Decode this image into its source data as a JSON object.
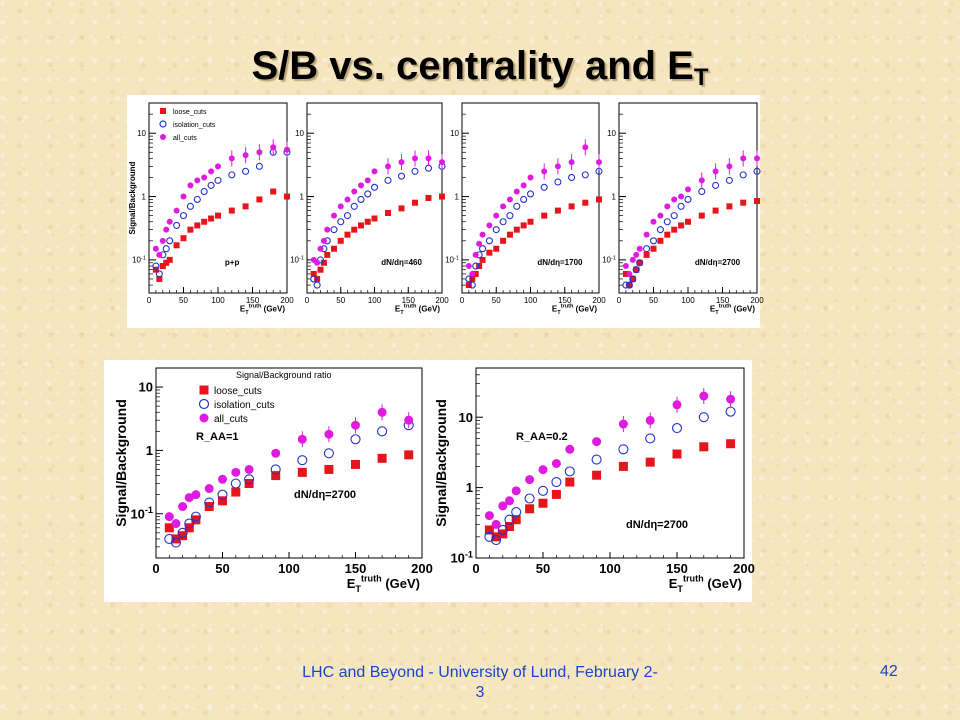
{
  "slide": {
    "title_main": "S/B vs. centrality and E",
    "title_sub": "T",
    "footer": "LHC and Beyond - University of Lund, February 2-3",
    "page_number": "42"
  },
  "colors": {
    "loose_cuts": "#e8141b",
    "isolation_cuts": "#2233cc",
    "all_cuts": "#e01be0",
    "background": "#f6e6bf",
    "footer_text": "#1a44c8"
  },
  "chart_data": [
    {
      "type": "scatter",
      "figure": "top",
      "panel": 1,
      "ylabel": "Signal/Background",
      "xlabel": "E_T^truth (GeV)",
      "xlim": [
        0,
        200
      ],
      "ylim": [
        0.03,
        30
      ],
      "yscale": "log",
      "yticks": [
        0.1,
        1,
        10
      ],
      "xticks": [
        0,
        50,
        100,
        150,
        200
      ],
      "annotation": "p+p",
      "legend": [
        "loose_cuts",
        "isolation_cuts",
        "all_cuts"
      ],
      "legend_position": "top-left",
      "series": [
        {
          "name": "loose_cuts",
          "marker": "filled-square",
          "x": [
            10,
            15,
            20,
            25,
            30,
            40,
            50,
            60,
            70,
            80,
            90,
            100,
            120,
            140,
            160,
            180,
            200
          ],
          "y": [
            0.07,
            0.05,
            0.08,
            0.09,
            0.1,
            0.17,
            0.22,
            0.3,
            0.35,
            0.4,
            0.45,
            0.5,
            0.6,
            0.7,
            0.9,
            1.2,
            1.0
          ]
        },
        {
          "name": "isolation_cuts",
          "marker": "open-circle",
          "x": [
            10,
            15,
            20,
            25,
            30,
            40,
            50,
            60,
            70,
            80,
            90,
            100,
            120,
            140,
            160,
            180,
            200
          ],
          "y": [
            0.08,
            0.06,
            0.12,
            0.15,
            0.2,
            0.35,
            0.5,
            0.7,
            0.9,
            1.2,
            1.5,
            1.8,
            2.2,
            2.5,
            3.0,
            5.0,
            5.0
          ]
        },
        {
          "name": "all_cuts",
          "marker": "filled-circle",
          "x": [
            10,
            15,
            20,
            25,
            30,
            40,
            50,
            60,
            70,
            80,
            90,
            100,
            120,
            140,
            160,
            180,
            200
          ],
          "y": [
            0.15,
            0.12,
            0.2,
            0.3,
            0.4,
            0.6,
            1.0,
            1.5,
            1.8,
            2.0,
            2.5,
            3.0,
            4.0,
            4.5,
            5.0,
            6.0,
            5.5
          ]
        }
      ]
    },
    {
      "type": "scatter",
      "figure": "top",
      "panel": 2,
      "xlabel": "E_T^truth (GeV)",
      "xlim": [
        0,
        200
      ],
      "ylim": [
        0.03,
        30
      ],
      "yscale": "log",
      "yticks": [
        0.1,
        1,
        10
      ],
      "xticks": [
        0,
        50,
        100,
        150,
        200
      ],
      "annotation": "dN/dη=460",
      "series": [
        {
          "name": "loose_cuts",
          "x": [
            10,
            15,
            20,
            25,
            30,
            40,
            50,
            60,
            70,
            80,
            90,
            100,
            120,
            140,
            160,
            180,
            200
          ],
          "y": [
            0.06,
            0.05,
            0.07,
            0.09,
            0.12,
            0.15,
            0.2,
            0.25,
            0.3,
            0.35,
            0.4,
            0.45,
            0.55,
            0.65,
            0.8,
            0.95,
            1.0
          ]
        },
        {
          "name": "isolation_cuts",
          "x": [
            10,
            15,
            20,
            25,
            30,
            40,
            50,
            60,
            70,
            80,
            90,
            100,
            120,
            140,
            160,
            180,
            200
          ],
          "y": [
            0.05,
            0.04,
            0.1,
            0.15,
            0.2,
            0.3,
            0.4,
            0.5,
            0.7,
            0.9,
            1.1,
            1.4,
            1.8,
            2.1,
            2.5,
            2.8,
            3.0
          ]
        },
        {
          "name": "all_cuts",
          "x": [
            10,
            15,
            20,
            25,
            30,
            40,
            50,
            60,
            70,
            80,
            90,
            100,
            120,
            140,
            160,
            180,
            200
          ],
          "y": [
            0.1,
            0.09,
            0.15,
            0.2,
            0.3,
            0.5,
            0.7,
            0.9,
            1.2,
            1.5,
            1.8,
            2.5,
            3.0,
            3.5,
            4.0,
            4.0,
            3.5
          ]
        }
      ]
    },
    {
      "type": "scatter",
      "figure": "top",
      "panel": 3,
      "xlabel": "E_T^truth (GeV)",
      "xlim": [
        0,
        200
      ],
      "ylim": [
        0.03,
        30
      ],
      "yscale": "log",
      "yticks": [
        0.1,
        1,
        10
      ],
      "xticks": [
        0,
        50,
        100,
        150,
        200
      ],
      "annotation": "dN/dη=1700",
      "series": [
        {
          "name": "loose_cuts",
          "x": [
            10,
            15,
            20,
            25,
            30,
            40,
            50,
            60,
            70,
            80,
            90,
            100,
            120,
            140,
            160,
            180,
            200
          ],
          "y": [
            0.04,
            0.05,
            0.06,
            0.08,
            0.1,
            0.13,
            0.15,
            0.2,
            0.25,
            0.3,
            0.35,
            0.4,
            0.5,
            0.6,
            0.7,
            0.8,
            0.9
          ]
        },
        {
          "name": "isolation_cuts",
          "x": [
            10,
            15,
            20,
            25,
            30,
            40,
            50,
            60,
            70,
            80,
            90,
            100,
            120,
            140,
            160,
            180,
            200
          ],
          "y": [
            0.05,
            0.04,
            0.08,
            0.12,
            0.15,
            0.2,
            0.3,
            0.4,
            0.5,
            0.7,
            0.9,
            1.1,
            1.4,
            1.7,
            2.0,
            2.2,
            2.5
          ]
        },
        {
          "name": "all_cuts",
          "x": [
            10,
            15,
            20,
            25,
            30,
            40,
            50,
            60,
            70,
            80,
            90,
            100,
            120,
            140,
            160,
            180,
            200
          ],
          "y": [
            0.08,
            0.06,
            0.12,
            0.18,
            0.25,
            0.35,
            0.5,
            0.7,
            0.9,
            1.2,
            1.5,
            2.0,
            2.5,
            3.0,
            3.5,
            6.0,
            3.5
          ]
        }
      ]
    },
    {
      "type": "scatter",
      "figure": "top",
      "panel": 4,
      "xlabel": "E_T^truth (GeV)",
      "xlim": [
        0,
        200
      ],
      "ylim": [
        0.03,
        30
      ],
      "yscale": "log",
      "yticks": [
        0.1,
        1,
        10
      ],
      "xticks": [
        0,
        50,
        100,
        150,
        200
      ],
      "annotation": "dN/dη=2700",
      "series": [
        {
          "name": "loose_cuts",
          "x": [
            10,
            15,
            20,
            25,
            30,
            40,
            50,
            60,
            70,
            80,
            90,
            100,
            120,
            140,
            160,
            180,
            200
          ],
          "y": [
            0.06,
            0.04,
            0.05,
            0.07,
            0.09,
            0.12,
            0.15,
            0.2,
            0.25,
            0.3,
            0.35,
            0.4,
            0.5,
            0.6,
            0.7,
            0.8,
            0.85
          ]
        },
        {
          "name": "isolation_cuts",
          "x": [
            10,
            15,
            20,
            25,
            30,
            40,
            50,
            60,
            70,
            80,
            90,
            100,
            120,
            140,
            160,
            180,
            200
          ],
          "y": [
            0.04,
            0.04,
            0.05,
            0.07,
            0.09,
            0.15,
            0.2,
            0.3,
            0.4,
            0.5,
            0.7,
            0.9,
            1.2,
            1.5,
            1.8,
            2.2,
            2.5
          ]
        },
        {
          "name": "all_cuts",
          "x": [
            10,
            15,
            20,
            25,
            30,
            40,
            50,
            60,
            70,
            80,
            90,
            100,
            120,
            140,
            160,
            180,
            200
          ],
          "y": [
            0.08,
            0.06,
            0.1,
            0.12,
            0.15,
            0.25,
            0.4,
            0.5,
            0.7,
            0.9,
            1.0,
            1.3,
            1.8,
            2.5,
            3.0,
            4.0,
            4.0
          ]
        }
      ]
    },
    {
      "type": "scatter",
      "figure": "bottom",
      "panel": 1,
      "title": "Signal/Background ratio",
      "ylabel": "Signal/Background",
      "xlabel": "E_T^truth (GeV)",
      "xlim": [
        0,
        200
      ],
      "ylim": [
        0.02,
        20
      ],
      "yscale": "log",
      "yticks": [
        0.1,
        1,
        10
      ],
      "xticks": [
        0,
        50,
        100,
        150,
        200
      ],
      "annotations": [
        "R_AA=1",
        "dN/dη=2700"
      ],
      "legend": [
        "loose_cuts",
        "isolation_cuts",
        "all_cuts"
      ],
      "legend_position": "top-left",
      "series": [
        {
          "name": "loose_cuts",
          "x": [
            10,
            15,
            20,
            25,
            30,
            40,
            50,
            60,
            70,
            90,
            110,
            130,
            150,
            170,
            190
          ],
          "y": [
            0.06,
            0.04,
            0.045,
            0.06,
            0.08,
            0.13,
            0.16,
            0.22,
            0.3,
            0.4,
            0.45,
            0.5,
            0.6,
            0.75,
            0.85
          ]
        },
        {
          "name": "isolation_cuts",
          "x": [
            10,
            15,
            20,
            25,
            30,
            40,
            50,
            60,
            70,
            90,
            110,
            130,
            150,
            170,
            190
          ],
          "y": [
            0.04,
            0.035,
            0.05,
            0.07,
            0.09,
            0.15,
            0.2,
            0.3,
            0.35,
            0.5,
            0.7,
            0.9,
            1.5,
            2.0,
            2.5
          ]
        },
        {
          "name": "all_cuts",
          "x": [
            10,
            15,
            20,
            25,
            30,
            40,
            50,
            60,
            70,
            90,
            110,
            130,
            150,
            170,
            190
          ],
          "y": [
            0.09,
            0.07,
            0.13,
            0.18,
            0.2,
            0.25,
            0.35,
            0.45,
            0.5,
            0.9,
            1.5,
            1.8,
            2.5,
            4.0,
            3.0
          ]
        }
      ]
    },
    {
      "type": "scatter",
      "figure": "bottom",
      "panel": 2,
      "ylabel": "Signal/Background",
      "xlabel": "E_T^truth (GeV)",
      "xlim": [
        0,
        200
      ],
      "ylim": [
        0.1,
        50
      ],
      "yscale": "log",
      "yticks": [
        0.1,
        1,
        10
      ],
      "xticks": [
        0,
        50,
        100,
        150,
        200
      ],
      "annotations": [
        "R_AA=0.2",
        "dN/dη=2700"
      ],
      "series": [
        {
          "name": "loose_cuts",
          "x": [
            10,
            15,
            20,
            25,
            30,
            40,
            50,
            60,
            70,
            90,
            110,
            130,
            150,
            170,
            190
          ],
          "y": [
            0.25,
            0.2,
            0.22,
            0.28,
            0.35,
            0.5,
            0.6,
            0.8,
            1.2,
            1.5,
            2.0,
            2.3,
            3.0,
            3.8,
            4.2
          ]
        },
        {
          "name": "isolation_cuts",
          "x": [
            10,
            15,
            20,
            25,
            30,
            40,
            50,
            60,
            70,
            90,
            110,
            130,
            150,
            170,
            190
          ],
          "y": [
            0.2,
            0.18,
            0.25,
            0.35,
            0.45,
            0.7,
            0.9,
            1.2,
            1.7,
            2.5,
            3.5,
            5.0,
            7.0,
            10,
            12
          ]
        },
        {
          "name": "all_cuts",
          "x": [
            10,
            15,
            20,
            25,
            30,
            40,
            50,
            60,
            70,
            90,
            110,
            130,
            150,
            170,
            190
          ],
          "y": [
            0.4,
            0.3,
            0.55,
            0.65,
            0.9,
            1.3,
            1.8,
            2.2,
            3.5,
            4.5,
            8.0,
            9.0,
            15,
            20,
            18
          ]
        }
      ]
    }
  ]
}
